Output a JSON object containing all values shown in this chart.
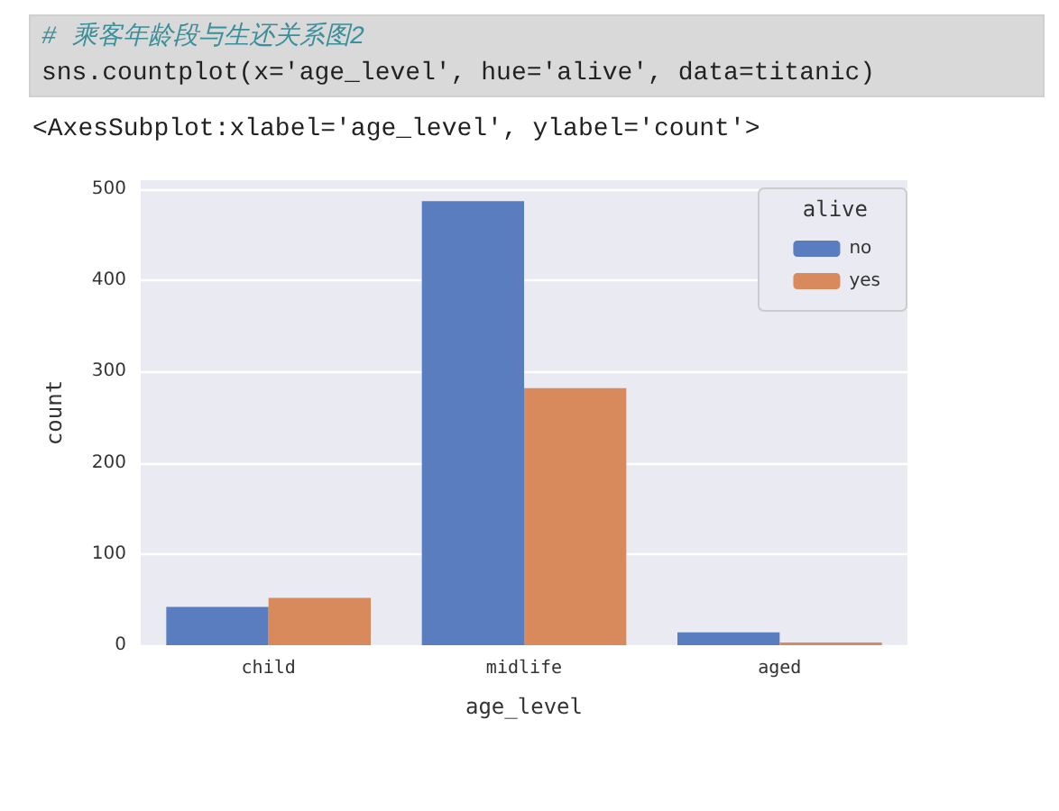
{
  "chart_data": {
    "type": "bar",
    "annotations": [
      "# 乘客年龄段与生还关系图2",
      "sns.countplot(x='age_level', hue='alive', data=titanic)",
      "<AxesSubplot:xlabel='age_level', ylabel='count'>"
    ],
    "xlabel": "age_level",
    "ylabel": "count",
    "legend_title": "alive",
    "categories": [
      "child",
      "midlife",
      "aged"
    ],
    "series": [
      {
        "name": "no",
        "color": "#5a7dc0",
        "values": [
          42,
          487,
          14
        ]
      },
      {
        "name": "yes",
        "color": "#d98a5c",
        "values": [
          52,
          282,
          3
        ]
      }
    ],
    "ylim": [
      0,
      510
    ],
    "yticks": [
      0,
      100,
      200,
      300,
      400,
      500
    ],
    "grid": "y",
    "legend": "top right"
  }
}
